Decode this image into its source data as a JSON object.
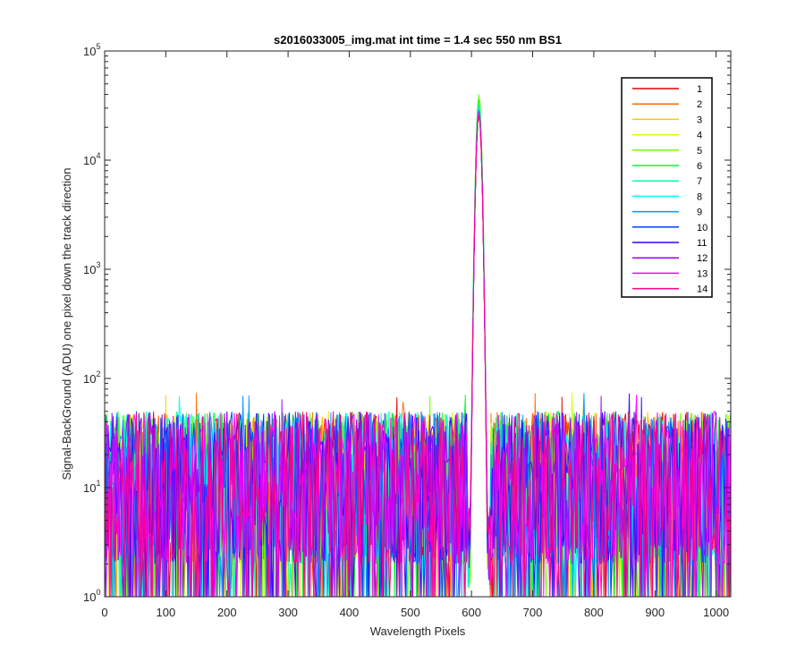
{
  "chart_data": {
    "type": "line",
    "title": "s2016033005_img.mat int time = 1.4 sec  550 nm BS1",
    "xlabel": "Wavelength Pixels",
    "ylabel": "Signal-BackGround (ADU) one pixel down the track direction",
    "xlim": [
      0,
      1024
    ],
    "ylim": [
      1,
      100000
    ],
    "yscale": "log",
    "x_ticks": [
      0,
      100,
      200,
      300,
      400,
      500,
      600,
      700,
      800,
      900,
      1000
    ],
    "y_ticks": [
      {
        "value": 1,
        "base": "10",
        "exp": "0"
      },
      {
        "value": 10,
        "base": "10",
        "exp": "1"
      },
      {
        "value": 100,
        "base": "10",
        "exp": "2"
      },
      {
        "value": 1000,
        "base": "10",
        "exp": "3"
      },
      {
        "value": 10000,
        "base": "10",
        "exp": "4"
      },
      {
        "value": 100000,
        "base": "10",
        "exp": "5"
      }
    ],
    "grid": false,
    "legend_position": "top-right",
    "noise_level_range": [
      2,
      50
    ],
    "peak": {
      "x": 612,
      "values": [
        27000,
        28000,
        30000,
        33000,
        40000,
        36000,
        32000,
        30000,
        29000,
        27000,
        26000,
        28000,
        27000,
        26000
      ]
    },
    "series": [
      {
        "name": "1",
        "color": "#e60000"
      },
      {
        "name": "2",
        "color": "#ff6a00"
      },
      {
        "name": "3",
        "color": "#ffc800"
      },
      {
        "name": "4",
        "color": "#d2ff00"
      },
      {
        "name": "5",
        "color": "#73ff00"
      },
      {
        "name": "6",
        "color": "#00ff33"
      },
      {
        "name": "7",
        "color": "#00ffaa"
      },
      {
        "name": "8",
        "color": "#00ffff"
      },
      {
        "name": "9",
        "color": "#0099ff"
      },
      {
        "name": "10",
        "color": "#0040ff"
      },
      {
        "name": "11",
        "color": "#3300ff"
      },
      {
        "name": "12",
        "color": "#9900ff"
      },
      {
        "name": "13",
        "color": "#ff00ff"
      },
      {
        "name": "14",
        "color": "#ff0088"
      }
    ]
  }
}
